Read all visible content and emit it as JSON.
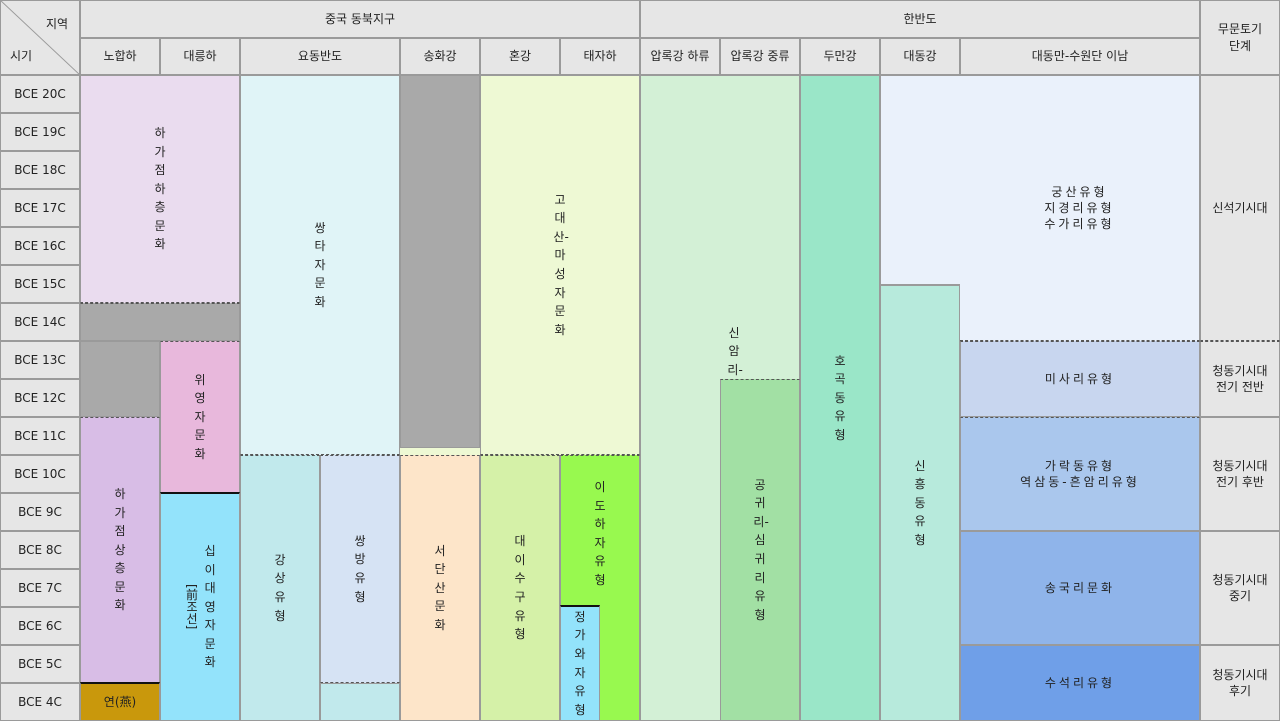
{
  "corner": {
    "region_label": "지역",
    "time_label": "시기"
  },
  "regions": {
    "northeast_china": "중국 동북지구",
    "korean_peninsula": "한반도",
    "pottery_stage": "무문토기\n단계"
  },
  "subregions": [
    "노합하",
    "대릉하",
    "요동반도",
    "송화강",
    "혼강",
    "태자하",
    "압록강 하류",
    "압록강 중류",
    "두만강",
    "대동강",
    "대동만-수원단 이남"
  ],
  "centuries": [
    "BCE 20C",
    "BCE 19C",
    "BCE 18C",
    "BCE 17C",
    "BCE 16C",
    "BCE 15C",
    "BCE 14C",
    "BCE 13C",
    "BCE 12C",
    "BCE 11C",
    "BCE 10C",
    "BCE 9C",
    "BCE 8C",
    "BCE 7C",
    "BCE 6C",
    "BCE 5C",
    "BCE 4C"
  ],
  "cultures": {
    "hajiadian_lower": "하가점하층문화",
    "wei_ying_zi": "위영자문화",
    "hajiadian_upper": "하가점상층문화",
    "yan": "연(燕)",
    "shi_er_tai": "십이대영자문화",
    "shi_er_tai_note": "[前조선]",
    "shuang_tuo_zi": "쌍타자문화",
    "gang_shang": "강상유형",
    "shuang_fang": "쌍방유형",
    "xi_tuan_shan": "서단산문화",
    "gao_tai_shan": "고대산-마성자문화",
    "da_li_shu_gou": "대이수구유형",
    "yi_dao_he_zi": "이도하자유형",
    "jing_jia_wa_zi": "정가와자유형",
    "sin_am_ri": "신암리-미송리유형",
    "gong_gwi_ri": "공귀리-심귀리유형",
    "ho_gok_dong": "호곡동유형",
    "sin_heung_dong": "신흥동유형",
    "gung_san": "궁산유형\n지경리유형\n수가리유형",
    "misa_ri": "미사리유형",
    "garak_dong": "가락동유형\n역삼동-흔암리유형",
    "songguk_ri": "송국리문화",
    "suseok_ri": "수석리유형"
  },
  "stages": {
    "neolithic": "신석기시대",
    "bronze_early_1": "청동기시대\n전기 전반",
    "bronze_early_2": "청동기시대\n전기 후반",
    "bronze_middle": "청동기시대\n중기",
    "bronze_late": "청동기시대\n후기"
  },
  "colors": {
    "header": "#e6e6e6",
    "gray_block": "#a9a9a9",
    "hajiadian_lower": "#eadcef",
    "wei_ying_zi": "#e8b8dc",
    "hajiadian_upper": "#d8bde6",
    "yan": "#c9980c",
    "shi_er_tai": "#93e3fb",
    "shuang_tuo_zi": "#e0f4f7",
    "gang_shang": "#c1e9ec",
    "shuang_fang": "#d6e3f4",
    "xi_tuan_shan": "#fde5c9",
    "gao_tai_shan": "#eef9d4",
    "da_li_shu_gou": "#d5f1a8",
    "yi_dao_he_zi": "#98f94f",
    "jing_jia_wa_zi": "#93e3fb",
    "sin_am_ri": "#d3f0d6",
    "gong_gwi_ri": "#a2e0a4",
    "ho_gok_dong": "#9ae6c8",
    "sin_heung_dong": "#b7eadc",
    "gung_san": "#eaf1fb",
    "misa_ri": "#c8d6ef",
    "garak_dong": "#aac7ed",
    "songguk_ri": "#8fb4ea",
    "suseok_ri": "#6f9fe8"
  }
}
